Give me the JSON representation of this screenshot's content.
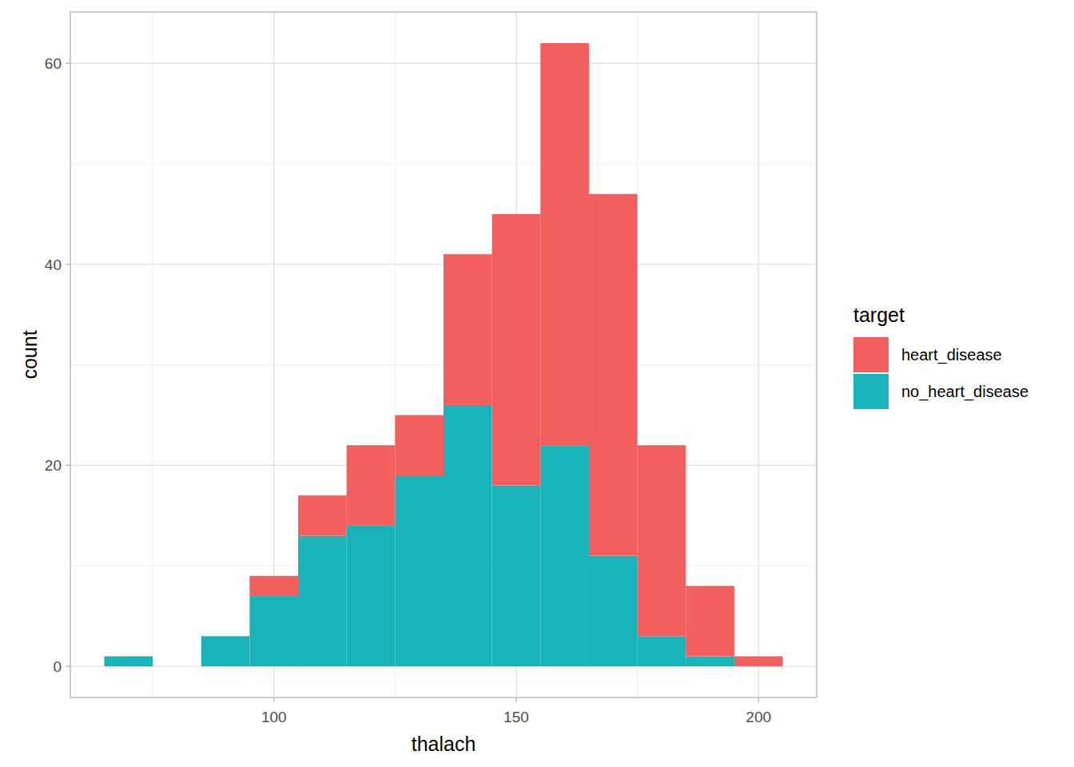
{
  "chart_data": {
    "type": "histogram",
    "x_label": "thalach",
    "y_label": "count",
    "legend_title": "target",
    "bins": [
      65,
      75,
      85,
      95,
      105,
      115,
      125,
      135,
      145,
      155,
      165,
      175,
      185,
      195,
      205
    ],
    "series": [
      {
        "name": "heart_disease",
        "color": "#f35f5c",
        "values": [
          0,
          0,
          0,
          2,
          4,
          8,
          6,
          15,
          27,
          40,
          36,
          19,
          7,
          1
        ]
      },
      {
        "name": "no_heart_disease",
        "color": "#19b4b9",
        "values": [
          1,
          0,
          3,
          7,
          13,
          14,
          19,
          26,
          18,
          22,
          11,
          3,
          1,
          0
        ]
      }
    ],
    "stacked": true,
    "xlim": [
      58,
      212
    ],
    "ylim": [
      -3.1,
      65.1
    ],
    "xticks": [
      100,
      150,
      200
    ],
    "yticks": [
      0,
      20,
      40,
      60
    ],
    "grid": true,
    "legend": "right"
  }
}
